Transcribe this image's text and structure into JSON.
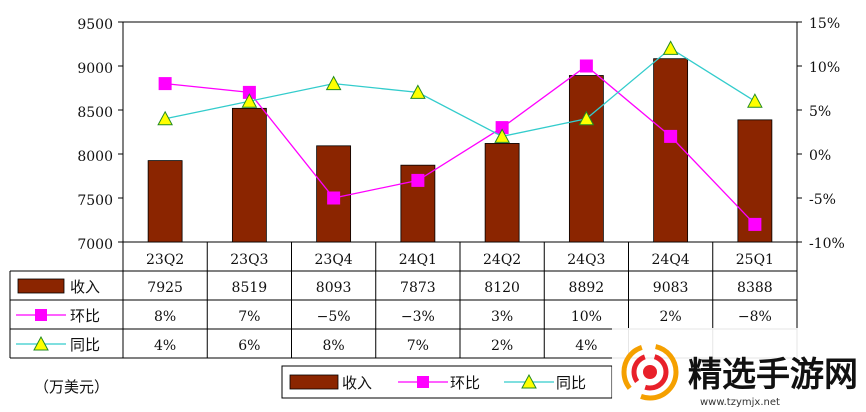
{
  "chart_data": {
    "type": "bar",
    "categories": [
      "23Q2",
      "23Q3",
      "23Q4",
      "24Q1",
      "24Q2",
      "24Q3",
      "24Q4",
      "25Q1"
    ],
    "series": [
      {
        "name": "收入",
        "type": "bar",
        "axis": "left",
        "color": "#8B2500",
        "values": [
          7925,
          8519,
          8093,
          7873,
          8120,
          8892,
          9083,
          8388
        ]
      },
      {
        "name": "环比",
        "type": "line",
        "axis": "right",
        "color": "#FF00FF",
        "marker": "square",
        "values": [
          8,
          7,
          -5,
          -3,
          3,
          10,
          2,
          -8
        ]
      },
      {
        "name": "同比",
        "type": "line",
        "axis": "right",
        "color": "#33CCCC",
        "marker": "triangle",
        "values": [
          4,
          6,
          8,
          7,
          2,
          4,
          12,
          6
        ]
      }
    ],
    "y_left": {
      "min": 7000,
      "max": 9500,
      "ticks": [
        7000,
        7500,
        8000,
        8500,
        9000,
        9500
      ]
    },
    "y_right": {
      "min": -10,
      "max": 15,
      "ticks": [
        "-10%",
        "-5%",
        "0%",
        "5%",
        "10%",
        "15%"
      ]
    },
    "table": {
      "rows": [
        {
          "label": "收入",
          "cells": [
            "7925",
            "8519",
            "8093",
            "7873",
            "8120",
            "8892",
            "9083",
            "8388"
          ]
        },
        {
          "label": "环比",
          "cells": [
            "8%",
            "7%",
            "−5%",
            "−3%",
            "3%",
            "10%",
            "2%",
            "−8%"
          ]
        },
        {
          "label": "同比",
          "cells": [
            "4%",
            "6%",
            "8%",
            "7%",
            "2%",
            "4%",
            "",
            ""
          ]
        }
      ]
    },
    "unit_label": "（万美元）",
    "legend": {
      "position": "bottom",
      "items": [
        "收入",
        "环比",
        "同比"
      ]
    },
    "grid": false
  },
  "watermark": {
    "text": "精选手游网",
    "url": "www.tzymjx.net"
  }
}
